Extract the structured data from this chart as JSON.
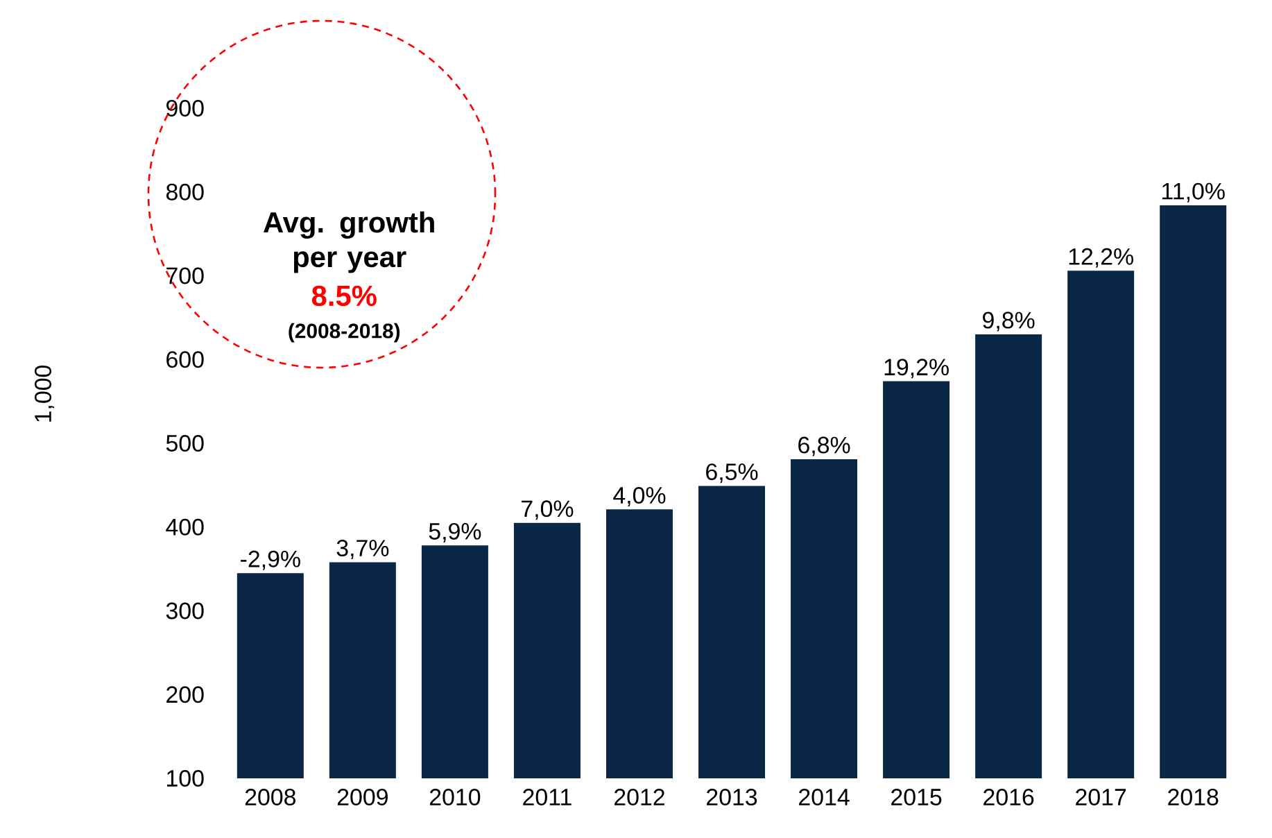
{
  "chart_data": {
    "type": "bar",
    "ylabel": "1,000",
    "categories": [
      "2008",
      "2009",
      "2010",
      "2011",
      "2012",
      "2013",
      "2014",
      "2015",
      "2016",
      "2017",
      "2018"
    ],
    "values": [
      345,
      358,
      378,
      405,
      421,
      449,
      481,
      574,
      630,
      706,
      784
    ],
    "color": "#0b2746",
    "ylim": [
      100,
      900
    ],
    "yticks": [
      100,
      200,
      300,
      400,
      500,
      600,
      700,
      800,
      900
    ],
    "grid": false,
    "annotations": [
      "Avg. growth per year",
      "8.5%",
      "(2008-2018)",
      {
        "text": "-2,9%",
        "x": "2008",
        "y": 345
      },
      {
        "text": "3,7%",
        "x": "2009",
        "y": 358
      },
      {
        "text": "5,9%",
        "x": "2010",
        "y": 378
      },
      {
        "text": "7,0%",
        "x": "2011",
        "y": 405
      },
      {
        "text": "4,0%",
        "x": "2012",
        "y": 421
      },
      {
        "text": "6,5%",
        "x": "2013",
        "y": 449
      },
      {
        "text": "6,8%",
        "x": "2014",
        "y": 481
      },
      {
        "text": "19,2%",
        "x": "2015",
        "y": 574
      },
      {
        "text": "9,8%",
        "x": "2016",
        "y": 630
      },
      {
        "text": "12,2%",
        "x": "2017",
        "y": 706
      },
      {
        "text": "11,0%",
        "x": "2018",
        "y": 784
      }
    ]
  }
}
